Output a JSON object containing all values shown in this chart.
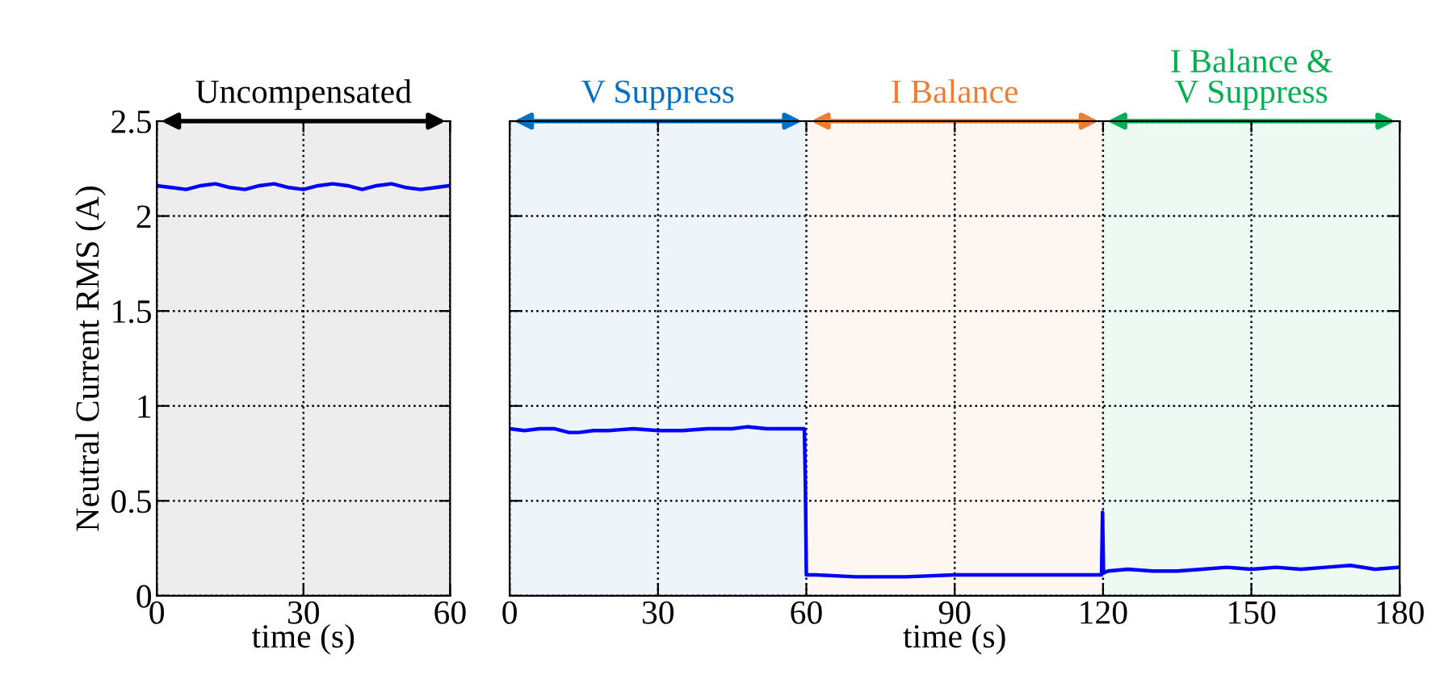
{
  "chart_data": [
    {
      "type": "line",
      "ylabel": "Neutral Current RMS (A)",
      "xlabel": "time (s)",
      "xlim": [
        0,
        60
      ],
      "xticks": [
        0,
        30,
        60
      ],
      "ylim": [
        0,
        2.5
      ],
      "yticks": [
        0,
        0.5,
        1,
        1.5,
        2,
        2.5
      ],
      "grid": true,
      "line_style": "solid",
      "bands": [
        {
          "axis": "x",
          "from": 0,
          "to": 60,
          "label": "Uncompensated",
          "color": "#000000"
        }
      ],
      "series": [
        {
          "color": "#0000ff",
          "x": [
            0,
            3,
            6,
            9,
            12,
            15,
            18,
            21,
            24,
            27,
            30,
            33,
            36,
            39,
            42,
            45,
            48,
            51,
            54,
            57,
            60
          ],
          "values": [
            2.16,
            2.15,
            2.14,
            2.16,
            2.17,
            2.15,
            2.14,
            2.16,
            2.17,
            2.15,
            2.14,
            2.16,
            2.17,
            2.16,
            2.14,
            2.16,
            2.17,
            2.15,
            2.14,
            2.15,
            2.16
          ]
        }
      ]
    },
    {
      "type": "line",
      "xlabel": "time (s)",
      "xlim": [
        0,
        180
      ],
      "xticks": [
        0,
        30,
        60,
        90,
        120,
        150,
        180
      ],
      "ylim": [
        0,
        2.5
      ],
      "yticks": [
        0,
        0.5,
        1,
        1.5,
        2,
        2.5
      ],
      "grid": true,
      "tick_labels": "x",
      "line_style": "solid",
      "bands": [
        {
          "axis": "x",
          "from": 0,
          "to": 60,
          "label": "V Suppress",
          "color": "#0070c0"
        },
        {
          "axis": "x",
          "from": 60,
          "to": 120,
          "label": "I Balance",
          "color": "#ed7d31"
        },
        {
          "axis": "x",
          "from": 120,
          "to": 180,
          "label": "I Balance &\nV Suppress",
          "color": "#00b050"
        }
      ],
      "series": [
        {
          "color": "#0000ff",
          "x": [
            0,
            3,
            6,
            9,
            12,
            14,
            17,
            20,
            25,
            30,
            35,
            40,
            45,
            48,
            52,
            56,
            59.6,
            59.8,
            60,
            62,
            70,
            80,
            90,
            100,
            110,
            119.7,
            119.9,
            120.1,
            121,
            125,
            130,
            135,
            140,
            145,
            150,
            155,
            160,
            165,
            170,
            175,
            180
          ],
          "values": [
            0.88,
            0.87,
            0.88,
            0.88,
            0.86,
            0.86,
            0.87,
            0.87,
            0.88,
            0.87,
            0.87,
            0.88,
            0.88,
            0.89,
            0.88,
            0.88,
            0.88,
            0.6,
            0.11,
            0.11,
            0.1,
            0.1,
            0.11,
            0.11,
            0.11,
            0.11,
            0.44,
            0.12,
            0.13,
            0.14,
            0.13,
            0.13,
            0.14,
            0.15,
            0.14,
            0.15,
            0.14,
            0.15,
            0.16,
            0.14,
            0.15
          ]
        }
      ]
    }
  ]
}
